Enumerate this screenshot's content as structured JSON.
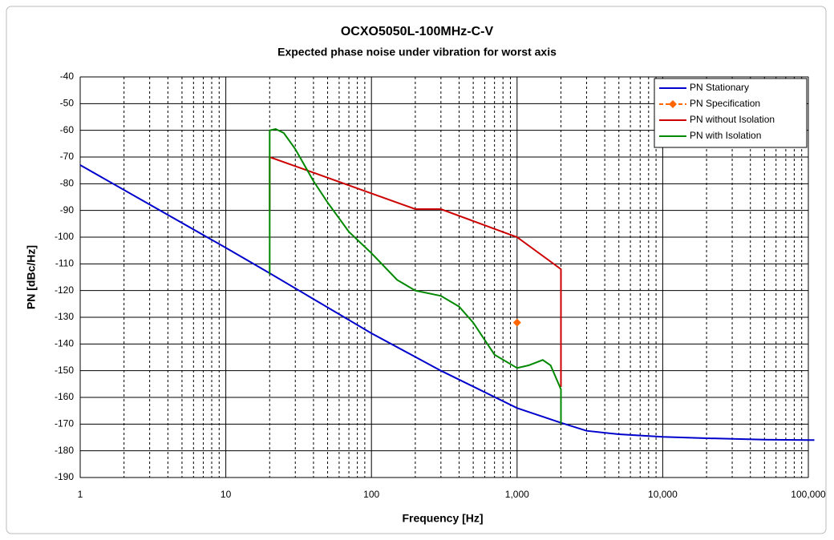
{
  "chart_data": {
    "type": "line",
    "title": "OCXO5050L-100MHz-C-V",
    "subtitle": "Expected phase noise under vibration for worst axis",
    "x_label": "Frequency [Hz]",
    "y_label": "PN [dBc/Hz]",
    "log_x": true,
    "grid": true,
    "minor_grid": true,
    "legend": "upper right",
    "xlim": [
      1,
      100000
    ],
    "xticks": [
      1,
      10,
      100,
      {
        "value": 1000,
        "label": "1,000"
      },
      {
        "value": 10000,
        "label": "10,000"
      },
      {
        "value": 100000,
        "label": "100,000"
      }
    ],
    "ylim": [
      -190,
      -40
    ],
    "yticks": [
      -190,
      -180,
      -170,
      -160,
      -150,
      -140,
      -130,
      -120,
      -110,
      -100,
      -90,
      -80,
      -70,
      -60,
      -50,
      -40
    ],
    "series": [
      {
        "name": "PN Stationary",
        "color": "#0000cc",
        "x": [
          1,
          10,
          20,
          100,
          300,
          1000,
          2000,
          3000,
          5000,
          10000,
          20000,
          50000,
          100000,
          110000
        ],
        "values": [
          -73,
          -104,
          -113.5,
          -136,
          -150,
          -164,
          -169.5,
          -172.5,
          -173.8,
          -174.8,
          -175.3,
          -175.8,
          -176,
          -176
        ]
      },
      {
        "name": "PN Specification",
        "color": "#ff6600",
        "marker": "diamond",
        "dashed": true,
        "x": [
          1000
        ],
        "values": [
          -132
        ]
      },
      {
        "name": "PN without Isolation",
        "color": "#cc0000",
        "x": [
          20,
          20,
          200,
          300,
          1000,
          2000,
          2000
        ],
        "values": [
          -90,
          -70,
          -89.5,
          -89.5,
          -100,
          -112,
          -156
        ]
      },
      {
        "name": "PN with Isolation",
        "color": "#008800",
        "x": [
          20,
          20,
          22,
          25,
          30,
          40,
          50,
          70,
          100,
          150,
          200,
          300,
          400,
          500,
          700,
          1000,
          1200,
          1500,
          1700,
          2000,
          2000
        ],
        "values": [
          -114,
          -60,
          -59.5,
          -61,
          -67,
          -79,
          -87,
          -98,
          -106,
          -116,
          -120,
          -122,
          -126,
          -132,
          -144,
          -149,
          -148,
          -146,
          -148,
          -157,
          -170
        ]
      }
    ]
  }
}
